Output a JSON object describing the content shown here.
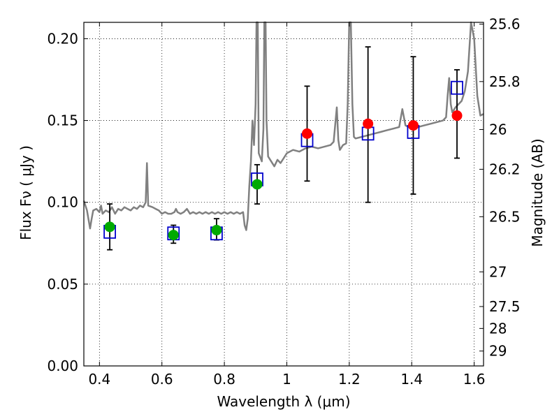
{
  "chart_data": {
    "type": "scatter",
    "xlabel": "Wavelength  λ (μm)",
    "ylabel_left": "Flux  Fν  ( μJy )",
    "ylabel_right": "Magnitude (AB)",
    "xlim": [
      0.35,
      1.63
    ],
    "ylim": [
      0.0,
      0.21
    ],
    "grid": true,
    "x_ticks": [
      0.4,
      0.6,
      0.8,
      1.0,
      1.2,
      1.4,
      1.6
    ],
    "x_tick_labels": [
      "0.4",
      "0.6",
      "0.8",
      "1",
      "1.2",
      "1.4",
      "1.6"
    ],
    "y_ticks": [
      0.0,
      0.05,
      0.1,
      0.15,
      0.2
    ],
    "y_tick_labels": [
      "0.00",
      "0.05",
      "0.10",
      "0.15",
      "0.20"
    ],
    "right_ticks": [
      {
        "label": "25.6",
        "flux": 0.2089
      },
      {
        "label": "25.8",
        "flux": 0.1738
      },
      {
        "label": "26",
        "flux": 0.1445
      },
      {
        "label": "26.2",
        "flux": 0.1202
      },
      {
        "label": "26.5",
        "flux": 0.0912
      },
      {
        "label": "27",
        "flux": 0.0575
      },
      {
        "label": "27.5",
        "flux": 0.0363
      },
      {
        "label": "28",
        "flux": 0.0229
      },
      {
        "label": "29",
        "flux": 0.0091
      }
    ],
    "series": [
      {
        "kind": "template-spectrum",
        "color": "#808080",
        "points": [
          [
            0.35,
            0.101
          ],
          [
            0.36,
            0.095
          ],
          [
            0.37,
            0.084
          ],
          [
            0.375,
            0.09
          ],
          [
            0.38,
            0.095
          ],
          [
            0.39,
            0.096
          ],
          [
            0.4,
            0.094
          ],
          [
            0.405,
            0.098
          ],
          [
            0.41,
            0.093
          ],
          [
            0.42,
            0.095
          ],
          [
            0.43,
            0.094
          ],
          [
            0.44,
            0.097
          ],
          [
            0.45,
            0.093
          ],
          [
            0.46,
            0.096
          ],
          [
            0.47,
            0.095
          ],
          [
            0.48,
            0.097
          ],
          [
            0.49,
            0.096
          ],
          [
            0.5,
            0.095
          ],
          [
            0.51,
            0.097
          ],
          [
            0.52,
            0.096
          ],
          [
            0.53,
            0.098
          ],
          [
            0.54,
            0.097
          ],
          [
            0.548,
            0.1
          ],
          [
            0.552,
            0.124
          ],
          [
            0.556,
            0.098
          ],
          [
            0.57,
            0.097
          ],
          [
            0.58,
            0.096
          ],
          [
            0.59,
            0.095
          ],
          [
            0.6,
            0.093
          ],
          [
            0.61,
            0.094
          ],
          [
            0.62,
            0.093
          ],
          [
            0.63,
            0.093
          ],
          [
            0.64,
            0.094
          ],
          [
            0.645,
            0.096
          ],
          [
            0.65,
            0.094
          ],
          [
            0.66,
            0.093
          ],
          [
            0.67,
            0.094
          ],
          [
            0.68,
            0.096
          ],
          [
            0.69,
            0.093
          ],
          [
            0.7,
            0.094
          ],
          [
            0.71,
            0.093
          ],
          [
            0.72,
            0.094
          ],
          [
            0.73,
            0.093
          ],
          [
            0.74,
            0.094
          ],
          [
            0.75,
            0.093
          ],
          [
            0.76,
            0.094
          ],
          [
            0.77,
            0.093
          ],
          [
            0.78,
            0.094
          ],
          [
            0.79,
            0.093
          ],
          [
            0.8,
            0.094
          ],
          [
            0.81,
            0.093
          ],
          [
            0.82,
            0.094
          ],
          [
            0.83,
            0.093
          ],
          [
            0.84,
            0.094
          ],
          [
            0.85,
            0.093
          ],
          [
            0.86,
            0.094
          ],
          [
            0.865,
            0.086
          ],
          [
            0.87,
            0.083
          ],
          [
            0.875,
            0.09
          ],
          [
            0.88,
            0.11
          ],
          [
            0.885,
            0.125
          ],
          [
            0.89,
            0.15
          ],
          [
            0.895,
            0.135
          ],
          [
            0.9,
            0.16
          ],
          [
            0.903,
            0.215
          ],
          [
            0.907,
            0.215
          ],
          [
            0.91,
            0.13
          ],
          [
            0.92,
            0.125
          ],
          [
            0.925,
            0.145
          ],
          [
            0.928,
            0.21
          ],
          [
            0.932,
            0.21
          ],
          [
            0.935,
            0.15
          ],
          [
            0.94,
            0.128
          ],
          [
            0.95,
            0.125
          ],
          [
            0.96,
            0.122
          ],
          [
            0.97,
            0.126
          ],
          [
            0.98,
            0.124
          ],
          [
            0.99,
            0.127
          ],
          [
            1.0,
            0.13
          ],
          [
            1.02,
            0.132
          ],
          [
            1.04,
            0.131
          ],
          [
            1.06,
            0.133
          ],
          [
            1.08,
            0.134
          ],
          [
            1.1,
            0.133
          ],
          [
            1.12,
            0.134
          ],
          [
            1.14,
            0.135
          ],
          [
            1.15,
            0.137
          ],
          [
            1.16,
            0.158
          ],
          [
            1.165,
            0.138
          ],
          [
            1.17,
            0.132
          ],
          [
            1.18,
            0.135
          ],
          [
            1.19,
            0.136
          ],
          [
            1.195,
            0.16
          ],
          [
            1.2,
            0.215
          ],
          [
            1.205,
            0.215
          ],
          [
            1.21,
            0.16
          ],
          [
            1.215,
            0.14
          ],
          [
            1.22,
            0.139
          ],
          [
            1.24,
            0.14
          ],
          [
            1.26,
            0.141
          ],
          [
            1.28,
            0.142
          ],
          [
            1.3,
            0.143
          ],
          [
            1.32,
            0.144
          ],
          [
            1.34,
            0.145
          ],
          [
            1.36,
            0.146
          ],
          [
            1.37,
            0.157
          ],
          [
            1.38,
            0.147
          ],
          [
            1.4,
            0.145
          ],
          [
            1.42,
            0.146
          ],
          [
            1.44,
            0.147
          ],
          [
            1.46,
            0.148
          ],
          [
            1.48,
            0.149
          ],
          [
            1.5,
            0.15
          ],
          [
            1.51,
            0.152
          ],
          [
            1.515,
            0.165
          ],
          [
            1.52,
            0.176
          ],
          [
            1.525,
            0.16
          ],
          [
            1.53,
            0.155
          ],
          [
            1.54,
            0.158
          ],
          [
            1.55,
            0.16
          ],
          [
            1.56,
            0.162
          ],
          [
            1.57,
            0.168
          ],
          [
            1.58,
            0.18
          ],
          [
            1.59,
            0.215
          ],
          [
            1.6,
            0.2
          ],
          [
            1.61,
            0.165
          ],
          [
            1.62,
            0.153
          ],
          [
            1.63,
            0.154
          ]
        ]
      },
      {
        "kind": "model-squares",
        "color": "#0000cc",
        "points": [
          [
            0.433,
            0.082
          ],
          [
            0.637,
            0.081
          ],
          [
            0.775,
            0.081
          ],
          [
            0.905,
            0.114
          ],
          [
            1.065,
            0.138
          ],
          [
            1.26,
            0.142
          ],
          [
            1.405,
            0.143
          ],
          [
            1.545,
            0.17
          ]
        ]
      },
      {
        "kind": "observed-green",
        "color": "#00aa00",
        "points": [
          {
            "x": 0.433,
            "y": 0.085,
            "err_lo": 0.071,
            "err_hi": 0.099
          },
          {
            "x": 0.637,
            "y": 0.08,
            "err_lo": 0.075,
            "err_hi": 0.086
          },
          {
            "x": 0.775,
            "y": 0.083,
            "err_lo": 0.077,
            "err_hi": 0.09
          },
          {
            "x": 0.905,
            "y": 0.111,
            "err_lo": 0.099,
            "err_hi": 0.123
          }
        ]
      },
      {
        "kind": "observed-red",
        "color": "#ff0000",
        "points": [
          {
            "x": 1.065,
            "y": 0.142,
            "err_lo": 0.113,
            "err_hi": 0.171
          },
          {
            "x": 1.26,
            "y": 0.148,
            "err_lo": 0.1,
            "err_hi": 0.195
          },
          {
            "x": 1.405,
            "y": 0.147,
            "err_lo": 0.105,
            "err_hi": 0.189
          },
          {
            "x": 1.545,
            "y": 0.153,
            "err_lo": 0.127,
            "err_hi": 0.181
          }
        ]
      }
    ]
  }
}
